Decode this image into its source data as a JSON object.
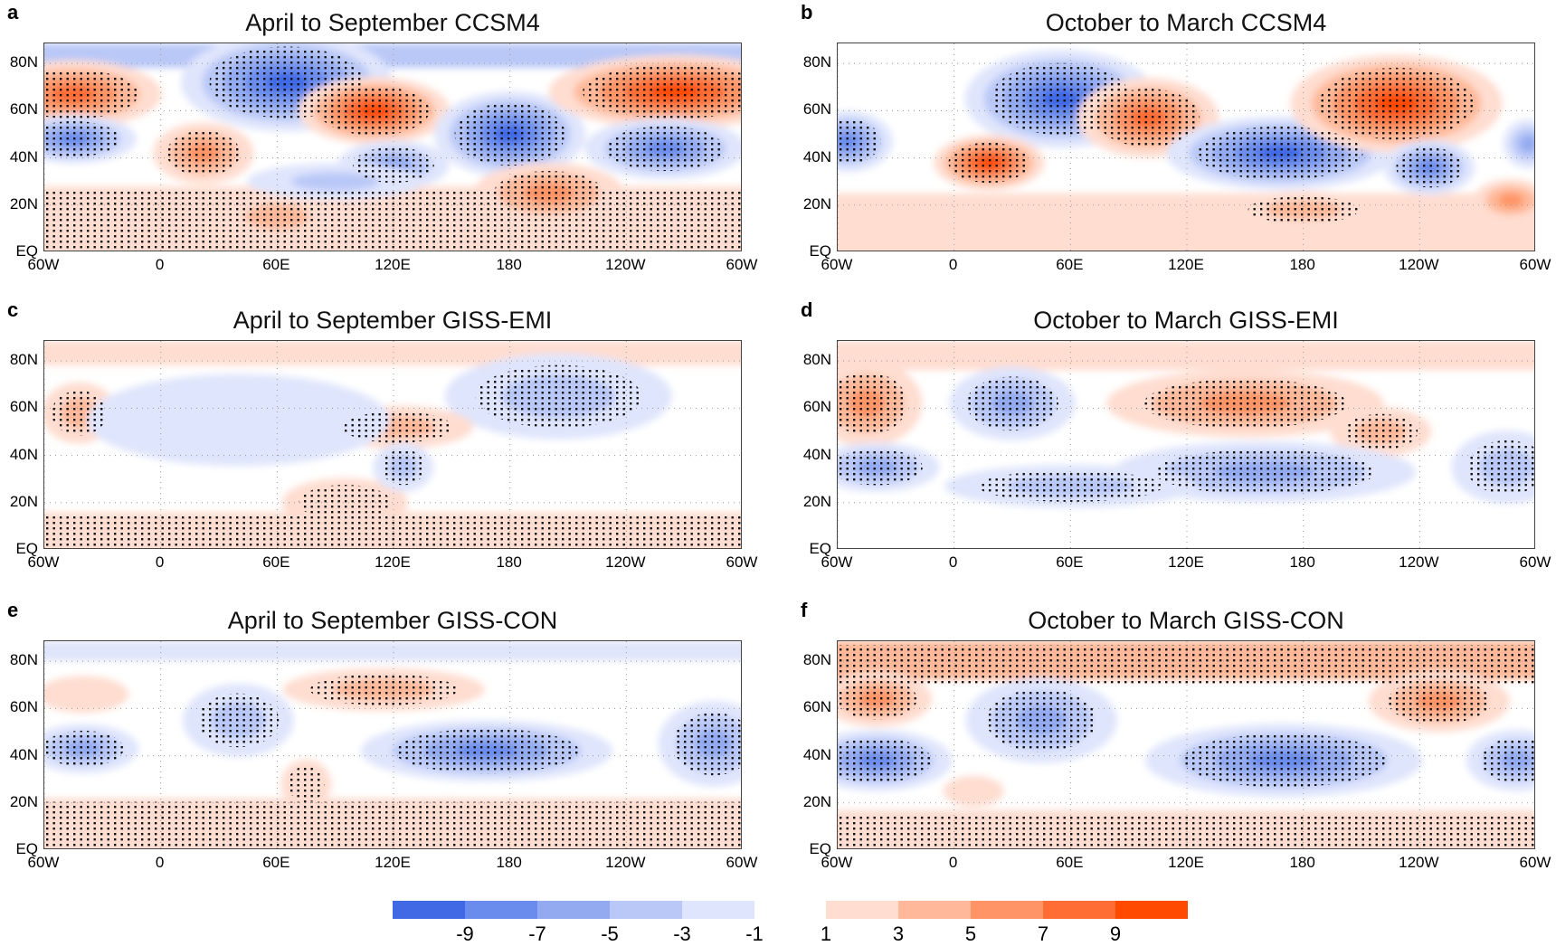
{
  "lat_labels": [
    "80N",
    "60N",
    "40N",
    "20N",
    "EQ"
  ],
  "lat_values": [
    80,
    60,
    40,
    20,
    0
  ],
  "lon_labels": [
    "60W",
    "0",
    "60E",
    "120E",
    "180",
    "120W",
    "60W"
  ],
  "lon_values": [
    -60,
    0,
    60,
    120,
    180,
    240,
    300
  ],
  "lat_range": [
    0,
    88.5
  ],
  "lon_range": [
    -60,
    300
  ],
  "colorbar": {
    "negative_colors": [
      "#4169e6",
      "#6a8cec",
      "#93aaf1",
      "#b9c8f7",
      "#dfe5fc"
    ],
    "positive_colors": [
      "#ffddd0",
      "#ffb99a",
      "#ff9466",
      "#ff6d35",
      "#ff4a00"
    ],
    "negative_labels": [
      "-9",
      "-7",
      "-5",
      "-3",
      "-1"
    ],
    "positive_labels": [
      "1",
      "3",
      "5",
      "7",
      "9"
    ]
  },
  "panels": [
    {
      "letter": "a",
      "title": "April to September CCSM4",
      "bands": [
        {
          "lat_from": 0,
          "lat_to": 28,
          "value": 1,
          "sig": true
        },
        {
          "lat_from": 82,
          "lat_to": 88.5,
          "value": -3,
          "sig": false
        }
      ],
      "anomalies": [
        {
          "lon": -45,
          "lat": 67,
          "lon_span": 35,
          "lat_span": 11,
          "value": 7,
          "sig": true
        },
        {
          "lon": 65,
          "lat": 72,
          "lon_span": 42,
          "lat_span": 16,
          "value": -9,
          "sig": true
        },
        {
          "lon": 110,
          "lat": 60,
          "lon_span": 30,
          "lat_span": 11,
          "value": 9,
          "sig": true
        },
        {
          "lon": 180,
          "lat": 50,
          "lon_span": 30,
          "lat_span": 14,
          "value": -9,
          "sig": true
        },
        {
          "lon": 265,
          "lat": 68,
          "lon_span": 50,
          "lat_span": 12,
          "value": 9,
          "sig": true
        },
        {
          "lon": -45,
          "lat": 48,
          "lon_span": 25,
          "lat_span": 8,
          "value": -7,
          "sig": true
        },
        {
          "lon": 260,
          "lat": 44,
          "lon_span": 32,
          "lat_span": 10,
          "value": -7,
          "sig": true
        },
        {
          "lon": 22,
          "lat": 42,
          "lon_span": 20,
          "lat_span": 10,
          "value": 5,
          "sig": true
        },
        {
          "lon": 120,
          "lat": 37,
          "lon_span": 22,
          "lat_span": 8,
          "value": -5,
          "sig": true
        },
        {
          "lon": 200,
          "lat": 25,
          "lon_span": 30,
          "lat_span": 10,
          "value": 5,
          "sig": true
        },
        {
          "lon": 60,
          "lat": 15,
          "lon_span": 25,
          "lat_span": 8,
          "value": 3,
          "sig": false
        },
        {
          "lon": 90,
          "lat": 30,
          "lon_span": 35,
          "lat_span": 6,
          "value": -3,
          "sig": false
        }
      ]
    },
    {
      "letter": "b",
      "title": "October to March CCSM4",
      "bands": [
        {
          "lat_from": 0,
          "lat_to": 25,
          "value": 1,
          "sig": false
        }
      ],
      "anomalies": [
        {
          "lon": -55,
          "lat": 47,
          "lon_span": 18,
          "lat_span": 10,
          "value": -7,
          "sig": true
        },
        {
          "lon": 55,
          "lat": 65,
          "lon_span": 38,
          "lat_span": 16,
          "value": -9,
          "sig": true
        },
        {
          "lon": 100,
          "lat": 57,
          "lon_span": 28,
          "lat_span": 13,
          "value": 7,
          "sig": true
        },
        {
          "lon": 18,
          "lat": 38,
          "lon_span": 22,
          "lat_span": 9,
          "value": 9,
          "sig": true
        },
        {
          "lon": 168,
          "lat": 42,
          "lon_span": 45,
          "lat_span": 12,
          "value": -9,
          "sig": true
        },
        {
          "lon": 228,
          "lat": 63,
          "lon_span": 42,
          "lat_span": 16,
          "value": 9,
          "sig": true
        },
        {
          "lon": 245,
          "lat": 36,
          "lon_span": 18,
          "lat_span": 9,
          "value": -7,
          "sig": true
        },
        {
          "lon": 180,
          "lat": 18,
          "lon_span": 30,
          "lat_span": 6,
          "value": 3,
          "sig": true
        },
        {
          "lon": 287,
          "lat": 22,
          "lon_span": 15,
          "lat_span": 7,
          "value": 5,
          "sig": false
        },
        {
          "lon": 296,
          "lat": 46,
          "lon_span": 10,
          "lat_span": 8,
          "value": -5,
          "sig": false
        }
      ]
    },
    {
      "letter": "c",
      "title": "April to September GISS-EMI",
      "bands": [
        {
          "lat_from": 0,
          "lat_to": 16,
          "value": 1,
          "sig": true
        },
        {
          "lat_from": 82,
          "lat_to": 88.5,
          "value": 1,
          "sig": false
        }
      ],
      "anomalies": [
        {
          "lon": 205,
          "lat": 65,
          "lon_span": 45,
          "lat_span": 14,
          "value": -3,
          "sig": true
        },
        {
          "lon": -42,
          "lat": 58,
          "lon_span": 15,
          "lat_span": 10,
          "value": 3,
          "sig": true
        },
        {
          "lon": 122,
          "lat": 52,
          "lon_span": 30,
          "lat_span": 7,
          "value": 3,
          "sig": true
        },
        {
          "lon": 40,
          "lat": 55,
          "lon_span": 60,
          "lat_span": 15,
          "value": -1,
          "sig": false
        },
        {
          "lon": 95,
          "lat": 20,
          "lon_span": 25,
          "lat_span": 8,
          "value": 1,
          "sig": true
        },
        {
          "lon": 125,
          "lat": 35,
          "lon_span": 12,
          "lat_span": 8,
          "value": -3,
          "sig": true
        }
      ]
    },
    {
      "letter": "d",
      "title": "October to March GISS-EMI",
      "bands": [
        {
          "lat_from": 80,
          "lat_to": 88.5,
          "value": 1,
          "sig": false
        }
      ],
      "anomalies": [
        {
          "lon": -45,
          "lat": 62,
          "lon_span": 22,
          "lat_span": 14,
          "value": 5,
          "sig": true
        },
        {
          "lon": 30,
          "lat": 62,
          "lon_span": 25,
          "lat_span": 12,
          "value": -5,
          "sig": true
        },
        {
          "lon": 150,
          "lat": 62,
          "lon_span": 55,
          "lat_span": 11,
          "value": 5,
          "sig": true
        },
        {
          "lon": 220,
          "lat": 50,
          "lon_span": 20,
          "lat_span": 8,
          "value": 3,
          "sig": true
        },
        {
          "lon": -40,
          "lat": 35,
          "lon_span": 25,
          "lat_span": 8,
          "value": -5,
          "sig": true
        },
        {
          "lon": 160,
          "lat": 33,
          "lon_span": 60,
          "lat_span": 10,
          "value": -5,
          "sig": true
        },
        {
          "lon": 60,
          "lat": 27,
          "lon_span": 50,
          "lat_span": 7,
          "value": -3,
          "sig": true
        },
        {
          "lon": 285,
          "lat": 35,
          "lon_span": 22,
          "lat_span": 12,
          "value": -3,
          "sig": true
        }
      ]
    },
    {
      "letter": "e",
      "title": "April to September GISS-CON",
      "bands": [
        {
          "lat_from": 0,
          "lat_to": 22,
          "value": 1,
          "sig": true
        },
        {
          "lat_from": 84,
          "lat_to": 88.5,
          "value": -1,
          "sig": false
        }
      ],
      "anomalies": [
        {
          "lon": -40,
          "lat": 43,
          "lon_span": 22,
          "lat_span": 8,
          "value": -5,
          "sig": true
        },
        {
          "lon": 40,
          "lat": 55,
          "lon_span": 22,
          "lat_span": 12,
          "value": -3,
          "sig": true
        },
        {
          "lon": 115,
          "lat": 68,
          "lon_span": 40,
          "lat_span": 7,
          "value": 3,
          "sig": true
        },
        {
          "lon": 168,
          "lat": 42,
          "lon_span": 50,
          "lat_span": 10,
          "value": -7,
          "sig": true
        },
        {
          "lon": 285,
          "lat": 45,
          "lon_span": 22,
          "lat_span": 14,
          "value": -5,
          "sig": true
        },
        {
          "lon": -40,
          "lat": 66,
          "lon_span": 18,
          "lat_span": 6,
          "value": 1,
          "sig": false
        },
        {
          "lon": 75,
          "lat": 28,
          "lon_span": 10,
          "lat_span": 8,
          "value": 1,
          "sig": true
        }
      ]
    },
    {
      "letter": "f",
      "title": "October to March GISS-CON",
      "bands": [
        {
          "lat_from": 76,
          "lat_to": 88.5,
          "value": 3,
          "sig": true
        },
        {
          "lat_from": 0,
          "lat_to": 17,
          "value": 1,
          "sig": true
        }
      ],
      "anomalies": [
        {
          "lon": 250,
          "lat": 63,
          "lon_span": 28,
          "lat_span": 10,
          "value": 5,
          "sig": true
        },
        {
          "lon": -40,
          "lat": 64,
          "lon_span": 22,
          "lat_span": 9,
          "value": 5,
          "sig": true
        },
        {
          "lon": 45,
          "lat": 55,
          "lon_span": 30,
          "lat_span": 14,
          "value": -5,
          "sig": true
        },
        {
          "lon": -40,
          "lat": 38,
          "lon_span": 30,
          "lat_span": 10,
          "value": -7,
          "sig": true
        },
        {
          "lon": 170,
          "lat": 38,
          "lon_span": 55,
          "lat_span": 12,
          "value": -7,
          "sig": true
        },
        {
          "lon": 290,
          "lat": 38,
          "lon_span": 20,
          "lat_span": 10,
          "value": -5,
          "sig": true
        },
        {
          "lon": 10,
          "lat": 25,
          "lon_span": 12,
          "lat_span": 5,
          "value": 1,
          "sig": false
        }
      ]
    }
  ]
}
